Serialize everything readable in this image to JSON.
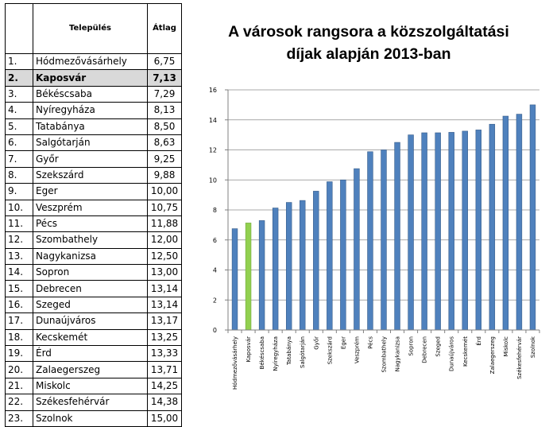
{
  "table": {
    "header": {
      "rank": "",
      "city": "Település",
      "avg": "Átlag"
    },
    "rows": [
      {
        "rank": "1.",
        "city": "Hódmezővásárhely",
        "avg": "6,75",
        "highlight": false
      },
      {
        "rank": "2.",
        "city": "Kaposvár",
        "avg": "7,13",
        "highlight": true
      },
      {
        "rank": "3.",
        "city": "Békéscsaba",
        "avg": "7,29",
        "highlight": false
      },
      {
        "rank": "4.",
        "city": "Nyíregyháza",
        "avg": "8,13",
        "highlight": false
      },
      {
        "rank": "5.",
        "city": "Tatabánya",
        "avg": "8,50",
        "highlight": false
      },
      {
        "rank": "6.",
        "city": "Salgótarján",
        "avg": "8,63",
        "highlight": false
      },
      {
        "rank": "7.",
        "city": "Győr",
        "avg": "9,25",
        "highlight": false
      },
      {
        "rank": "8.",
        "city": "Szekszárd",
        "avg": "9,88",
        "highlight": false
      },
      {
        "rank": "9.",
        "city": "Eger",
        "avg": "10,00",
        "highlight": false
      },
      {
        "rank": "10.",
        "city": "Veszprém",
        "avg": "10,75",
        "highlight": false
      },
      {
        "rank": "11.",
        "city": "Pécs",
        "avg": "11,88",
        "highlight": false
      },
      {
        "rank": "12.",
        "city": "Szombathely",
        "avg": "12,00",
        "highlight": false
      },
      {
        "rank": "13.",
        "city": "Nagykanizsa",
        "avg": "12,50",
        "highlight": false
      },
      {
        "rank": "14.",
        "city": "Sopron",
        "avg": "13,00",
        "highlight": false
      },
      {
        "rank": "15.",
        "city": "Debrecen",
        "avg": "13,14",
        "highlight": false
      },
      {
        "rank": "16.",
        "city": "Szeged",
        "avg": "13,14",
        "highlight": false
      },
      {
        "rank": "17.",
        "city": "Dunaújváros",
        "avg": "13,17",
        "highlight": false
      },
      {
        "rank": "18.",
        "city": "Kecskemét",
        "avg": "13,25",
        "highlight": false
      },
      {
        "rank": "19.",
        "city": "Érd",
        "avg": "13,33",
        "highlight": false
      },
      {
        "rank": "20.",
        "city": "Zalaegerszeg",
        "avg": "13,71",
        "highlight": false
      },
      {
        "rank": "21.",
        "city": "Miskolc",
        "avg": "14,25",
        "highlight": false
      },
      {
        "rank": "22.",
        "city": "Székesfehérvár",
        "avg": "14,38",
        "highlight": false
      },
      {
        "rank": "23.",
        "city": "Szolnok",
        "avg": "15,00",
        "highlight": false
      }
    ]
  },
  "chart_data": {
    "type": "bar",
    "title_line1": "A városok rangsora a közszolgáltatási",
    "title_line2": "díjak alapján 2013-ban",
    "categories": [
      "Hódmezővásárhely",
      "Kaposvár",
      "Békéscsaba",
      "Nyíregyháza",
      "Tatabánya",
      "Salgótarján",
      "Győr",
      "Szekszárd",
      "Eger",
      "Veszprém",
      "Pécs",
      "Szombathely",
      "Nagykanizsa",
      "Sopron",
      "Debrecen",
      "Szeged",
      "Dunaújváros",
      "Kecskemét",
      "Érd",
      "Zalaegerszeg",
      "Miskolc",
      "Székesfehérvár",
      "Szolnok"
    ],
    "values": [
      6.75,
      7.13,
      7.29,
      8.13,
      8.5,
      8.63,
      9.25,
      9.88,
      10.0,
      10.75,
      11.88,
      12.0,
      12.5,
      13.0,
      13.14,
      13.14,
      13.17,
      13.25,
      13.33,
      13.71,
      14.25,
      14.38,
      15.0
    ],
    "highlight_index": 1,
    "ylim": [
      0,
      16
    ],
    "yticks": [
      0,
      2,
      4,
      6,
      8,
      10,
      12,
      14,
      16
    ],
    "xlabel": "",
    "ylabel": "",
    "grid": true,
    "colors": {
      "bar": "#4f81bd",
      "bar_edge": "#385d8a",
      "highlight": "#92d050",
      "highlight_edge": "#6fa83a",
      "grid": "#8c8c8c"
    }
  }
}
